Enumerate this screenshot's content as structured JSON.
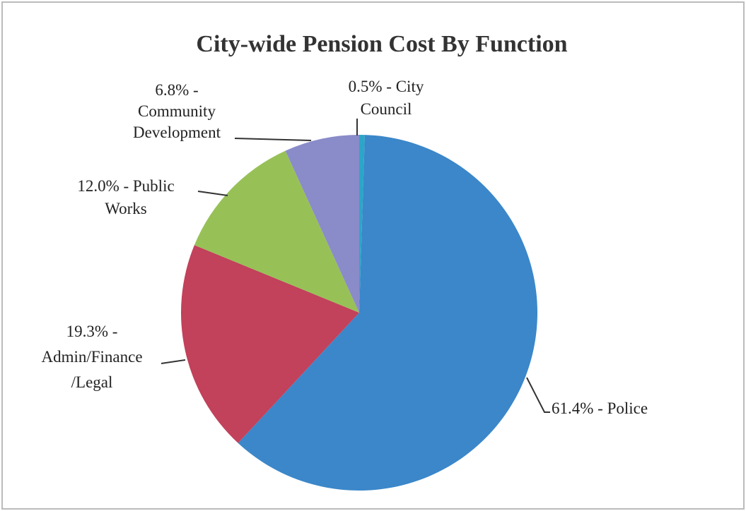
{
  "chart_data": {
    "type": "pie",
    "title": "City-wide  Pension Cost By Function",
    "values": [
      0.5,
      61.4,
      19.3,
      12.0,
      6.8
    ],
    "value_labels": [
      [
        "0.5% - City",
        "Council"
      ],
      [
        "61.4% - Police"
      ],
      [
        "19.3% -",
        "Admin/Finance",
        "/Legal"
      ],
      [
        "12.0% - Public",
        "Works"
      ],
      [
        "6.8% -",
        "Community",
        "Development"
      ]
    ],
    "colors": [
      "#2ba6c9",
      "#3b87c9",
      "#c2415b",
      "#97c157",
      "#8a8bc9"
    ]
  }
}
